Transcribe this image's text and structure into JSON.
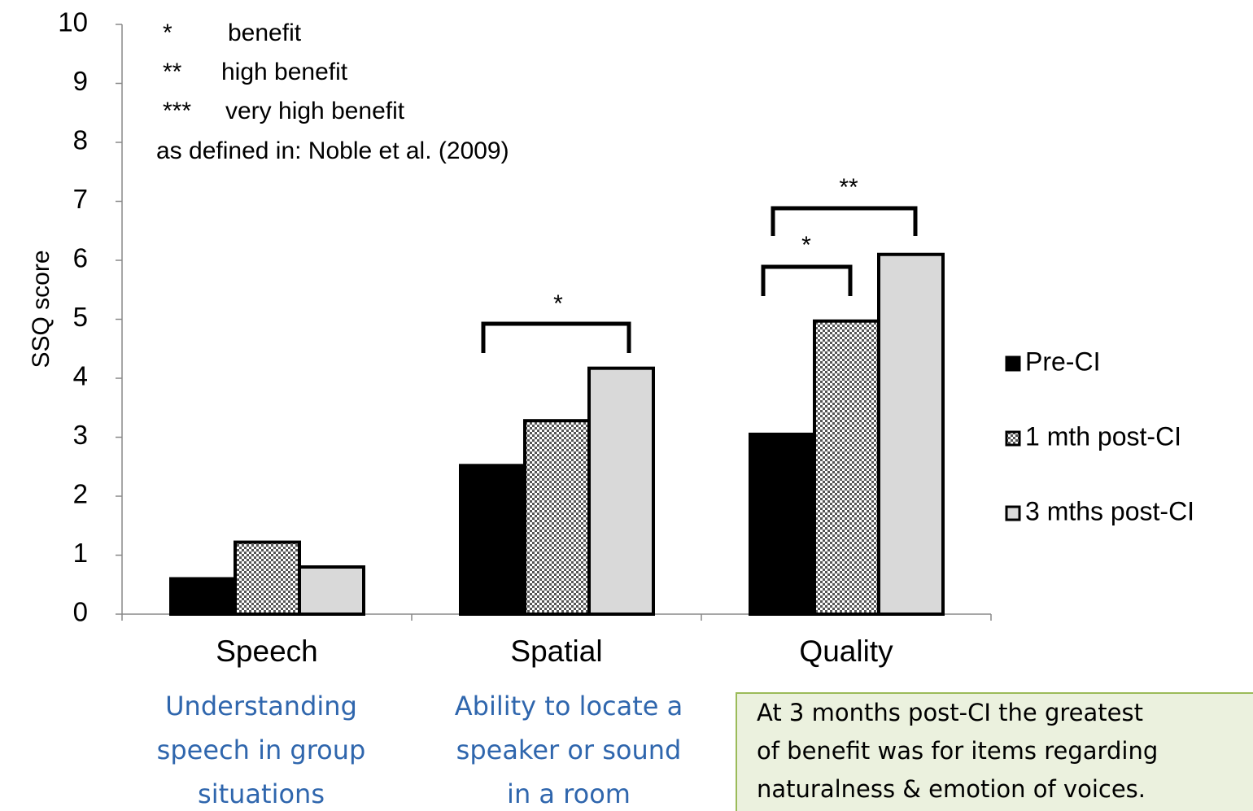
{
  "chart_data": {
    "type": "bar",
    "y_label": "SSQ score",
    "categories": [
      "Speech",
      "Spatial",
      "Quality"
    ],
    "category_descriptions": [
      [
        "Understanding",
        "speech in group",
        "situations"
      ],
      [
        "Ability to locate a",
        "speaker or sound",
        "in a room"
      ],
      []
    ],
    "series": [
      {
        "name": "Pre-CI",
        "color": "#000000",
        "values": [
          0.6,
          2.52,
          3.05
        ]
      },
      {
        "name": "1 mth post-CI",
        "color": "#808080",
        "pattern": "checker",
        "values": [
          1.22,
          3.28,
          4.97
        ]
      },
      {
        "name": "3 mths post-CI",
        "color": "#d9d9d9",
        "values": [
          0.8,
          4.17,
          6.1
        ]
      }
    ],
    "ylim": [
      0,
      10
    ],
    "yticks": [
      0,
      1,
      2,
      3,
      4,
      5,
      6,
      7,
      8,
      9,
      10
    ],
    "legend": "right",
    "key": [
      {
        "symbol": "*",
        "text": "benefit"
      },
      {
        "symbol": "**",
        "text": "high benefit"
      },
      {
        "symbol": "***",
        "text": "very high benefit"
      }
    ],
    "key_source": "as defined  in: Noble et al. (2009)",
    "significance": [
      "*",
      "*",
      "**"
    ],
    "note": [
      "At 3 months post-CI the greatest",
      "of benefit was for items regarding",
      "naturalness & emotion of voices."
    ]
  }
}
